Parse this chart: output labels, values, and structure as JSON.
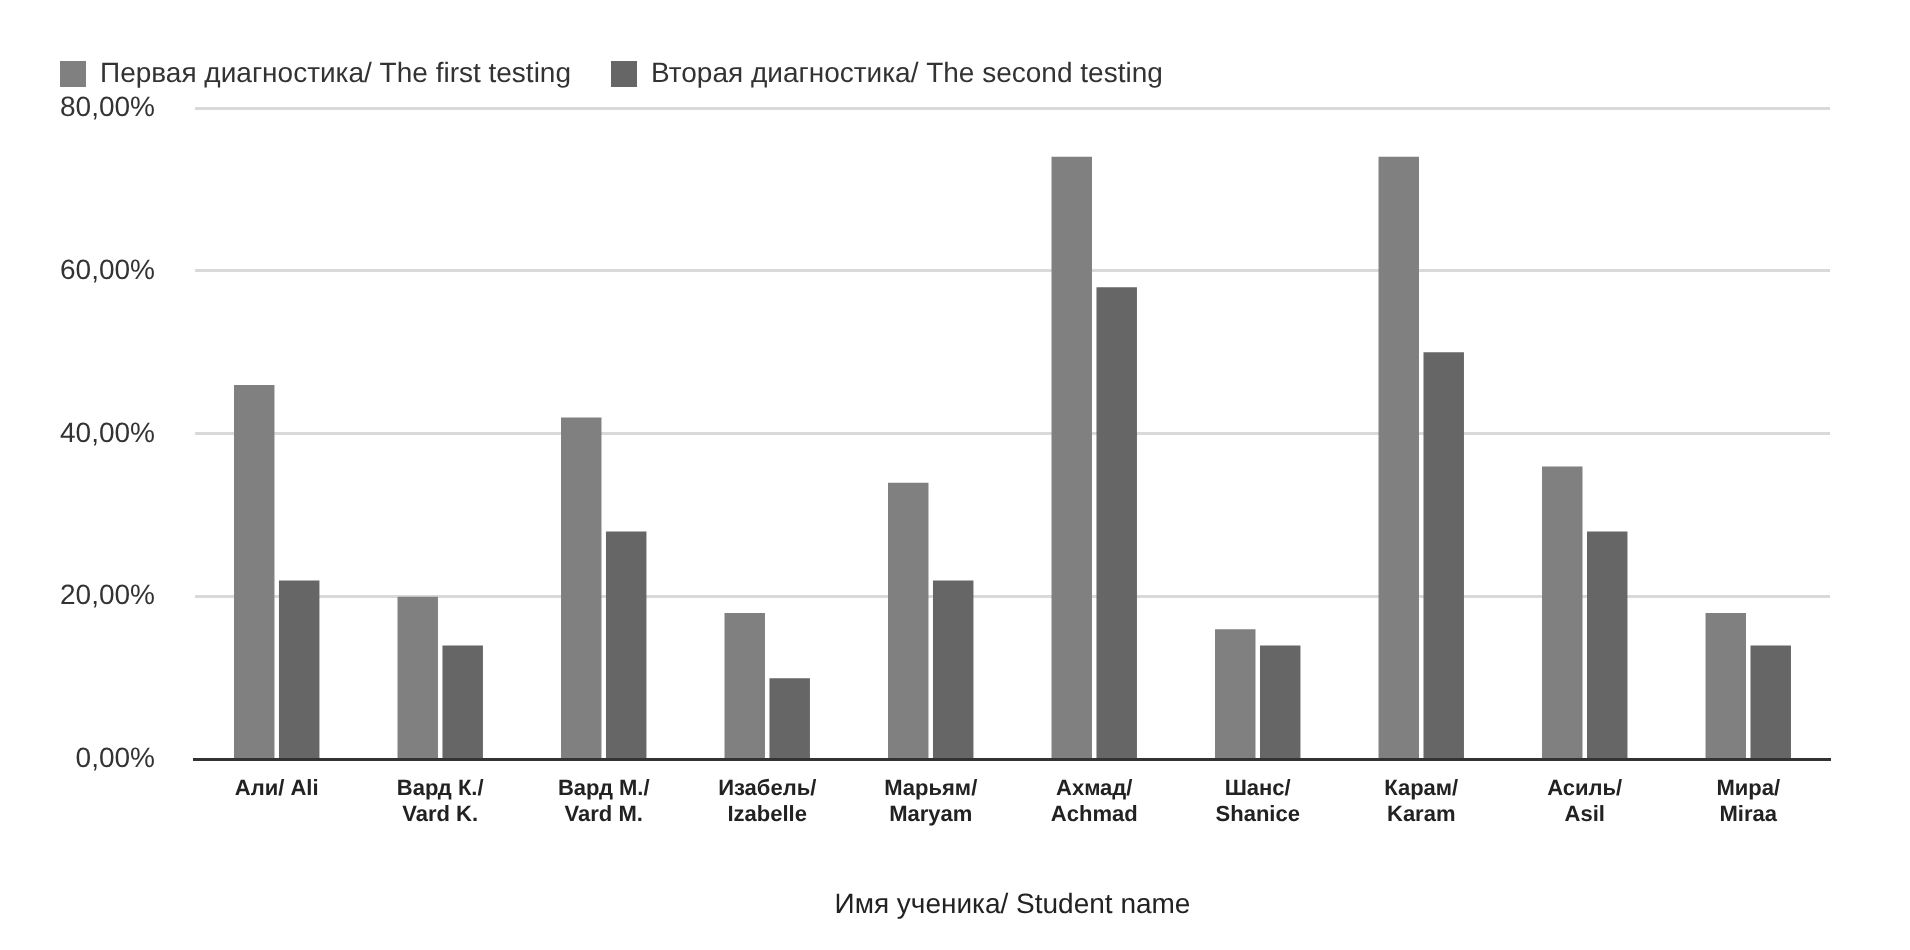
{
  "chart_data": {
    "type": "bar",
    "xlabel": "Имя ученика/ Student name",
    "categories": [
      "Али/ Ali",
      "Вард К./ Vard K.",
      "Вард М./ Vard M.",
      "Изабель/ Izabelle",
      "Марьям/ Maryam",
      "Ахмад/ Achmad",
      "Шанс/ Shanice",
      "Карам/ Karam",
      "Асиль/ Asil",
      "Мира/ Miraa"
    ],
    "series": [
      {
        "name": "Первая диагностика/ The first testing",
        "color": "#808080",
        "values": [
          46,
          20,
          42,
          18,
          34,
          74,
          16,
          74,
          36,
          18
        ]
      },
      {
        "name": "Вторая диагностика/ The second testing",
        "color": "#666666",
        "values": [
          22,
          14,
          28,
          10,
          22,
          58,
          14,
          50,
          28,
          14
        ]
      }
    ],
    "ylim": [
      0,
      80
    ],
    "yticks": [
      {
        "value": 0,
        "label": "0,00%"
      },
      {
        "value": 20,
        "label": "20,00%"
      },
      {
        "value": 40,
        "label": "40,00%"
      },
      {
        "value": 60,
        "label": "60,00%"
      },
      {
        "value": 80,
        "label": "80,00%"
      }
    ],
    "grid": "y",
    "legend": "top"
  }
}
